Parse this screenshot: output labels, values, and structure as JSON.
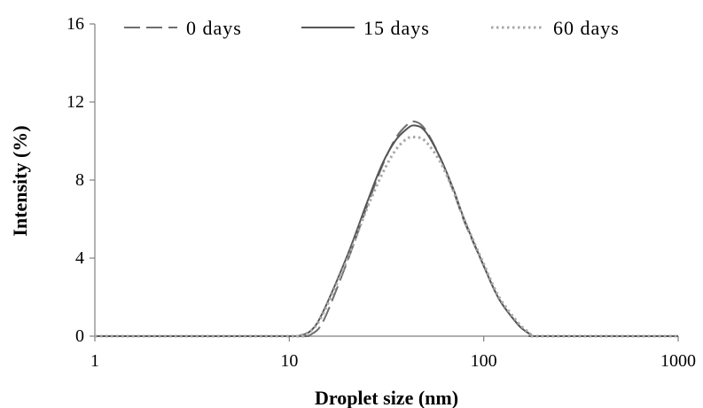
{
  "chart_data": {
    "type": "line",
    "xlabel": "Droplet size (nm)",
    "ylabel": "Intensity (%)",
    "xscale": "log",
    "xlim": [
      1,
      1000
    ],
    "ylim": [
      0,
      16
    ],
    "xticks": [
      1,
      10,
      100,
      1000
    ],
    "yticks": [
      0,
      4,
      8,
      12,
      16
    ],
    "xtick_labels": [
      "1",
      "10",
      "100",
      "1000"
    ],
    "ytick_labels": [
      "0",
      "4",
      "8",
      "12",
      "16"
    ],
    "grid": false,
    "legend_position": "top",
    "series": [
      {
        "name": "0 days",
        "style": "dashed",
        "color": "#6e6e6e",
        "x": [
          1,
          10,
          12,
          13,
          15,
          20,
          25,
          30,
          35,
          40,
          44,
          50,
          60,
          70,
          80,
          100,
          120,
          150,
          170,
          180,
          200,
          1000
        ],
        "y": [
          0,
          0,
          0,
          0.1,
          0.8,
          3.9,
          6.6,
          8.7,
          10.1,
          10.8,
          11.0,
          10.6,
          9.1,
          7.4,
          5.8,
          3.6,
          1.9,
          0.6,
          0.15,
          0,
          0,
          0
        ]
      },
      {
        "name": "15 days",
        "style": "solid",
        "color": "#555555",
        "x": [
          1,
          10,
          11,
          13,
          15,
          20,
          25,
          30,
          35,
          40,
          44,
          50,
          60,
          70,
          80,
          100,
          120,
          150,
          170,
          180,
          200,
          1000
        ],
        "y": [
          0,
          0,
          0,
          0.3,
          1.3,
          4.2,
          6.8,
          8.8,
          10.0,
          10.6,
          10.8,
          10.5,
          9.1,
          7.5,
          5.9,
          3.6,
          1.9,
          0.6,
          0.15,
          0,
          0,
          0
        ]
      },
      {
        "name": "60 days",
        "style": "dotted",
        "color": "#a8a8a8",
        "x": [
          1,
          10,
          11,
          13,
          15,
          20,
          25,
          30,
          35,
          40,
          44,
          50,
          60,
          70,
          80,
          100,
          120,
          150,
          170,
          180,
          200,
          1000
        ],
        "y": [
          0,
          0,
          0,
          0.3,
          1.2,
          4.0,
          6.5,
          8.3,
          9.5,
          10.1,
          10.2,
          10.0,
          8.9,
          7.4,
          5.9,
          3.7,
          2.0,
          0.7,
          0.2,
          0,
          0,
          0
        ]
      }
    ]
  }
}
